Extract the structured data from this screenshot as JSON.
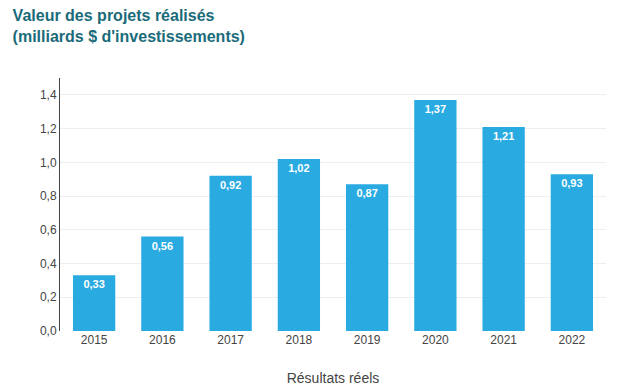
{
  "chart_data": {
    "type": "bar",
    "title": "Valeur des projets réalisés",
    "subtitle": "(milliards $ d'investissements)",
    "xlabel": "Résultats réels",
    "categories": [
      "2015",
      "2016",
      "2017",
      "2018",
      "2019",
      "2020",
      "2021",
      "2022"
    ],
    "values": [
      0.33,
      0.56,
      0.92,
      1.02,
      0.87,
      1.37,
      1.21,
      0.93
    ],
    "value_labels": [
      "0,33",
      "0,56",
      "0,92",
      "1,02",
      "0,87",
      "1,37",
      "1,21",
      "0,93"
    ],
    "data_labels": true,
    "color": "#29ABE2",
    "ylim": [
      0,
      1.5
    ],
    "yticks": [
      {
        "value": 0.0,
        "label": "0,0"
      },
      {
        "value": 0.2,
        "label": "0,2"
      },
      {
        "value": 0.4,
        "label": "0,4"
      },
      {
        "value": 0.6,
        "label": "0,6"
      },
      {
        "value": 0.8,
        "label": "0,8"
      },
      {
        "value": 1.0,
        "label": "1,0"
      },
      {
        "value": 1.2,
        "label": "1,2"
      },
      {
        "value": 1.4,
        "label": "1,4"
      }
    ],
    "grid": true
  }
}
